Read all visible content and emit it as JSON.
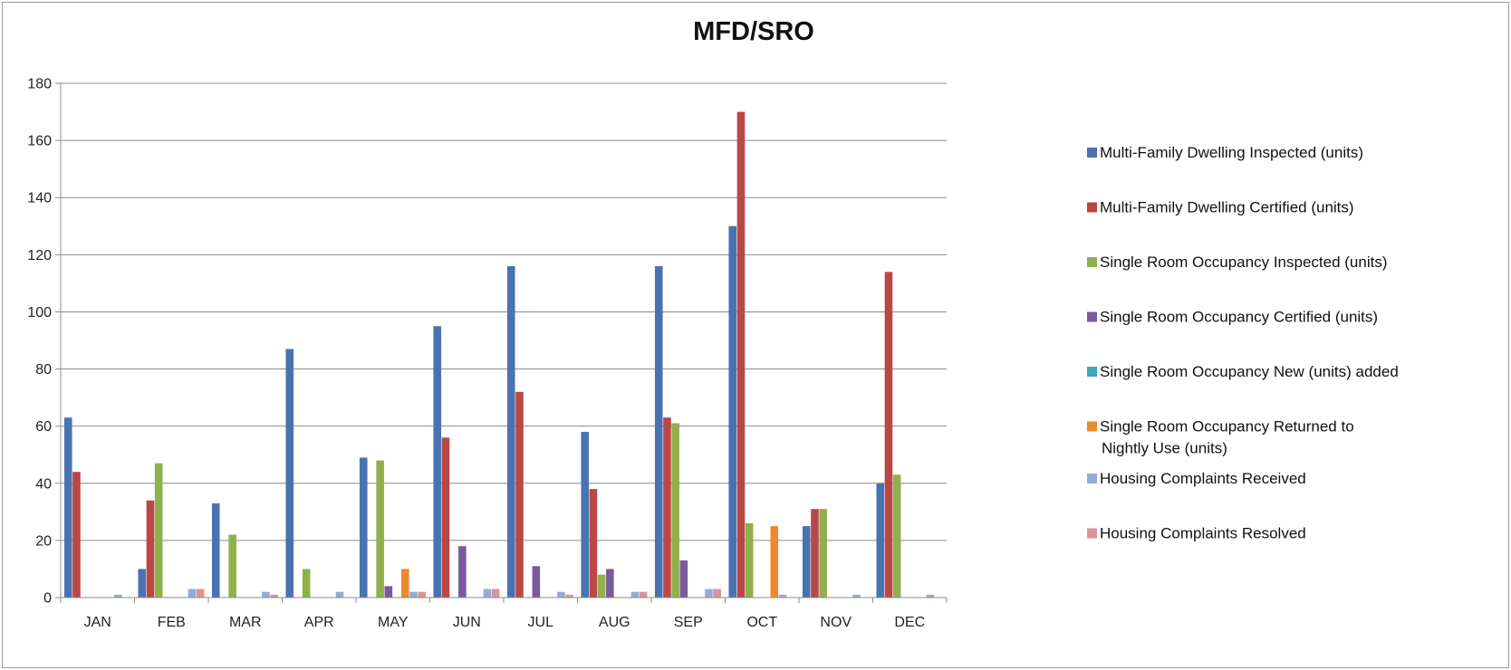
{
  "chart_data": {
    "type": "bar",
    "title": "MFD/SRO",
    "xlabel": "",
    "ylabel": "",
    "ylim": [
      0,
      180
    ],
    "yticks": [
      0,
      20,
      40,
      60,
      80,
      100,
      120,
      140,
      160,
      180
    ],
    "grid": true,
    "legend_position": "right",
    "categories": [
      "JAN",
      "FEB",
      "MAR",
      "APR",
      "MAY",
      "JUN",
      "JUL",
      "AUG",
      "SEP",
      "OCT",
      "NOV",
      "DEC"
    ],
    "series": [
      {
        "name": "Multi-Family Dwelling  Inspected (units)",
        "color": "#4a72b0",
        "values": [
          63,
          10,
          33,
          87,
          49,
          95,
          116,
          58,
          116,
          130,
          25,
          40
        ]
      },
      {
        "name": "Multi-Family Dwelling Certified (units)",
        "color": "#b94744",
        "values": [
          44,
          34,
          0,
          0,
          0,
          56,
          72,
          38,
          63,
          170,
          31,
          114
        ]
      },
      {
        "name": "Single Room Occupancy Inspected (units)",
        "color": "#8fb04a",
        "values": [
          0,
          47,
          22,
          10,
          48,
          0,
          0,
          8,
          61,
          26,
          31,
          43
        ]
      },
      {
        "name": "Single Room Occupancy Certified (units)",
        "color": "#7a5a9c",
        "values": [
          0,
          0,
          0,
          0,
          4,
          18,
          11,
          10,
          13,
          0,
          0,
          0
        ]
      },
      {
        "name": "Single Room Occupancy New (units) added",
        "color": "#3fa6bd",
        "values": [
          0,
          0,
          0,
          0,
          0,
          0,
          0,
          0,
          0,
          0,
          0,
          0
        ]
      },
      {
        "name": "Single Room Occupancy Returned to Nightly Use (units)",
        "color": "#e98a2c",
        "values": [
          0,
          0,
          0,
          0,
          10,
          0,
          0,
          0,
          0,
          25,
          0,
          0
        ]
      },
      {
        "name": "Housing Complaints Received",
        "color": "#93acd6",
        "values": [
          1,
          3,
          2,
          2,
          2,
          3,
          2,
          2,
          3,
          1,
          1,
          1
        ]
      },
      {
        "name": "Housing Complaints Resolved",
        "color": "#d99694",
        "values": [
          0,
          3,
          1,
          0,
          2,
          3,
          1,
          2,
          3,
          0,
          0,
          0
        ]
      }
    ]
  }
}
